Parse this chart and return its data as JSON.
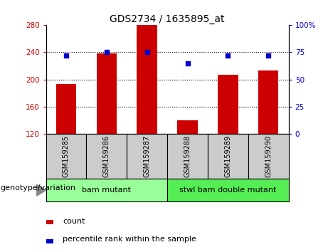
{
  "title": "GDS2734 / 1635895_at",
  "samples": [
    "GSM159285",
    "GSM159286",
    "GSM159287",
    "GSM159288",
    "GSM159289",
    "GSM159290"
  ],
  "counts": [
    193,
    238,
    280,
    140,
    207,
    213
  ],
  "percentiles": [
    72,
    75,
    75,
    65,
    72,
    72
  ],
  "ylim": [
    120,
    280
  ],
  "yticks": [
    120,
    160,
    200,
    240,
    280
  ],
  "right_ylim": [
    0,
    100
  ],
  "right_yticks": [
    0,
    25,
    50,
    75,
    100
  ],
  "right_yticklabels": [
    "0",
    "25",
    "50",
    "75",
    "100%"
  ],
  "bar_color": "#cc0000",
  "dot_color": "#0000cc",
  "bar_width": 0.5,
  "group1_label": "bam mutant",
  "group2_label": "stwl bam double mutant",
  "group1_indices": [
    0,
    1,
    2
  ],
  "group2_indices": [
    3,
    4,
    5
  ],
  "group1_color": "#99ff99",
  "group2_color": "#55ee55",
  "genotype_label": "genotype/variation",
  "legend_count_label": "count",
  "legend_percentile_label": "percentile rank within the sample",
  "left_label_color": "#cc0000",
  "right_label_color": "#0000cc",
  "sample_box_color": "#cccccc",
  "dotted_lines": [
    160,
    200,
    240
  ]
}
